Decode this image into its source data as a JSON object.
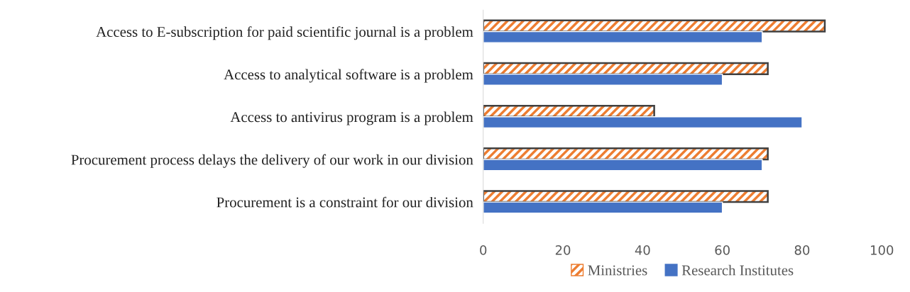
{
  "chart_data": {
    "type": "bar",
    "orientation": "horizontal",
    "categories": [
      "Access to E-subscription for paid scientific journal is a problem",
      "Access to analytical software is a problem",
      "Access to antivirus program is a problem",
      "Procurement process delays the delivery of our work in our division",
      "Procurement is a constraint for our division"
    ],
    "series": [
      {
        "name": "Ministries",
        "color": "#ed7d31",
        "values": [
          85.7,
          71.4,
          42.9,
          71.4,
          71.4
        ]
      },
      {
        "name": "Research Institutes",
        "color": "#4472c4",
        "values": [
          70,
          60,
          80,
          70,
          60
        ]
      }
    ],
    "xlim": [
      0,
      100
    ],
    "xticks": [
      0,
      20,
      40,
      60,
      80,
      100
    ],
    "grid": false,
    "legend": "bottom"
  }
}
